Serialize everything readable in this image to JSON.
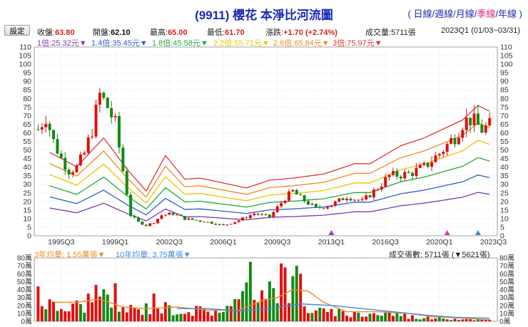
{
  "header": {
    "title": "(9911) 櫻花 本淨比河流圖",
    "periods": [
      {
        "label": "日線",
        "active": false
      },
      {
        "label": "週線",
        "active": false
      },
      {
        "label": "月線",
        "active": false
      },
      {
        "label": "季線",
        "active": true
      },
      {
        "label": "年線",
        "active": false
      }
    ],
    "open_paren": "(",
    "close_paren": ")",
    "sep": "/"
  },
  "toolbar": {
    "settings_label": "設定",
    "close_label": "收盤:",
    "close_value": "63.80",
    "open_label": "開盤:",
    "open_value": "62.10",
    "high_label": "最高:",
    "high_value": "65.00",
    "low_label": "最低:",
    "low_value": "61.70",
    "change_label": "漲跌:",
    "change_value": "+1.70",
    "change_pct": "(+2.74%)",
    "volume_label": "成交量:",
    "volume_value": "5711張",
    "period_text": "2023Q1 (01/03~03/31)"
  },
  "colors": {
    "up": "#e01010",
    "down": "#138a13",
    "b1": "#7a3db0",
    "b2": "#2f5fd0",
    "b3": "#22a83a",
    "b4": "#e9c400",
    "b5": "#ee8a22",
    "b6": "#de3535",
    "ma3": "#ee8a22",
    "ma10": "#3a8ee0"
  },
  "chart_data": {
    "type": "candlestick-river",
    "price_axis": {
      "min": 0,
      "max": 110,
      "step": 5
    },
    "x_ticks": [
      "1995Q3",
      "1999Q1",
      "2002Q3",
      "2006Q1",
      "2009Q3",
      "2013Q1",
      "2016Q3",
      "2020Q1",
      "2023Q3"
    ],
    "bands": [
      {
        "name": "1倍:25.32元",
        "line": "1倍",
        "price": 25.32
      },
      {
        "name": "1.4倍:35.45元",
        "line": "1.4倍",
        "price": 35.45
      },
      {
        "name": "1.8倍:45.58元",
        "line": "1.8倍",
        "price": 45.58
      },
      {
        "name": "2.2倍:55.71元",
        "line": "2.2倍",
        "price": 55.71
      },
      {
        "name": "2.6倍:65.84元",
        "line": "2.6倍",
        "price": 65.84
      },
      {
        "name": "3倍:75.97元",
        "line": "3倍",
        "price": 75.97
      }
    ],
    "bvps_anchors": [
      [
        1994.75,
        16.2
      ],
      [
        1996.5,
        13.4
      ],
      [
        1998.25,
        19.0
      ],
      [
        1999.75,
        13.0
      ],
      [
        2001.0,
        8.7
      ],
      [
        2002.25,
        15.6
      ],
      [
        2003.5,
        11.0
      ],
      [
        2004.5,
        11.2
      ],
      [
        2007.5,
        9.3
      ],
      [
        2009.0,
        10.8
      ],
      [
        2010.5,
        11.2
      ],
      [
        2012.5,
        12.0
      ],
      [
        2014.5,
        14.0
      ],
      [
        2015.5,
        14.0
      ],
      [
        2017.5,
        17.5
      ],
      [
        2019.0,
        19.0
      ],
      [
        2021.5,
        22.5
      ],
      [
        2022.5,
        25.3
      ],
      [
        2023.25,
        24.2
      ]
    ],
    "candle_anchors": [
      [
        1994.0,
        62
      ],
      [
        1994.5,
        70
      ],
      [
        1995.0,
        55
      ],
      [
        1995.5,
        45
      ],
      [
        1996.0,
        38
      ],
      [
        1996.5,
        40
      ],
      [
        1997.0,
        48
      ],
      [
        1997.5,
        62
      ],
      [
        1998.0,
        82
      ],
      [
        1998.5,
        75
      ],
      [
        1999.0,
        65
      ],
      [
        1999.5,
        38
      ],
      [
        2000.0,
        12
      ],
      [
        2000.5,
        8
      ],
      [
        2001.0,
        6
      ],
      [
        2001.5,
        8
      ],
      [
        2002.0,
        12
      ],
      [
        2002.75,
        13
      ],
      [
        2003.5,
        10
      ],
      [
        2005.0,
        8
      ],
      [
        2006.0,
        6
      ],
      [
        2007.0,
        9
      ],
      [
        2008.0,
        13
      ],
      [
        2009.0,
        11
      ],
      [
        2010.0,
        22
      ],
      [
        2010.5,
        26
      ],
      [
        2011.0,
        22
      ],
      [
        2012.0,
        16
      ],
      [
        2013.0,
        18
      ],
      [
        2014.0,
        23
      ],
      [
        2015.0,
        20
      ],
      [
        2016.0,
        28
      ],
      [
        2016.75,
        35
      ],
      [
        2018.0,
        36
      ],
      [
        2019.0,
        40
      ],
      [
        2020.0,
        48
      ],
      [
        2021.0,
        58
      ],
      [
        2021.5,
        66
      ],
      [
        2022.0,
        68
      ],
      [
        2022.75,
        62
      ],
      [
        2023.25,
        64
      ]
    ],
    "volume_axis": {
      "unit": "萬",
      "min": 0,
      "max": 80,
      "step": 10,
      "labels": [
        "0萬",
        "10萬",
        "20萬",
        "30萬",
        "40萬",
        "50萬",
        "60萬",
        "70萬",
        "80萬"
      ]
    },
    "volume_header": {
      "ma3_label": "3年均量: 1.55萬張",
      "ma10_label": "10年均量: 3.75萬張",
      "volume_text": "成交張數: 5711張 (▼5621張)"
    },
    "volume_anchors": [
      [
        1994.0,
        40
      ],
      [
        1995.0,
        22
      ],
      [
        1996.0,
        20
      ],
      [
        1997.0,
        28
      ],
      [
        1997.75,
        43
      ],
      [
        1998.5,
        28
      ],
      [
        1999.5,
        20
      ],
      [
        2000.5,
        18
      ],
      [
        2001.5,
        24
      ],
      [
        2002.5,
        20
      ],
      [
        2003.5,
        18
      ],
      [
        2005.0,
        16
      ],
      [
        2006.5,
        22
      ],
      [
        2008.0,
        50
      ],
      [
        2009.5,
        60
      ],
      [
        2010.5,
        50
      ],
      [
        2011.5,
        22
      ],
      [
        2012.5,
        14
      ],
      [
        2014.0,
        12
      ],
      [
        2015.5,
        12
      ],
      [
        2017.0,
        12
      ],
      [
        2018.5,
        6
      ],
      [
        2020.0,
        5
      ],
      [
        2021.5,
        4
      ],
      [
        2023.25,
        2
      ]
    ],
    "volume_spikes": [
      [
        1994.0,
        44
      ],
      [
        1997.75,
        46
      ],
      [
        1999.0,
        48
      ],
      [
        2001.5,
        35
      ],
      [
        2007.75,
        75
      ],
      [
        2008.5,
        39
      ],
      [
        2009.75,
        73
      ],
      [
        2010.0,
        68
      ],
      [
        2010.5,
        57
      ],
      [
        2010.75,
        70
      ],
      [
        2011.0,
        60
      ]
    ],
    "ma3_anchors": [
      [
        1995.0,
        24
      ],
      [
        1996.5,
        24
      ],
      [
        1998.0,
        28
      ],
      [
        1999.5,
        18
      ],
      [
        2001.0,
        16
      ],
      [
        2003.0,
        18
      ],
      [
        2005.0,
        14
      ],
      [
        2007.0,
        14
      ],
      [
        2008.5,
        26
      ],
      [
        2009.5,
        30
      ],
      [
        2010.5,
        40
      ],
      [
        2011.5,
        38
      ],
      [
        2012.5,
        24
      ],
      [
        2014.0,
        12
      ],
      [
        2016.0,
        12
      ],
      [
        2018.0,
        10
      ],
      [
        2019.5,
        6
      ],
      [
        2021.5,
        4
      ],
      [
        2023.25,
        2
      ]
    ],
    "ma10_anchors": [
      [
        2003.0,
        16
      ],
      [
        2005.0,
        16
      ],
      [
        2007.0,
        13
      ],
      [
        2009.0,
        16
      ],
      [
        2011.0,
        22
      ],
      [
        2013.0,
        20
      ],
      [
        2015.0,
        16
      ],
      [
        2017.0,
        12
      ],
      [
        2019.0,
        8
      ],
      [
        2021.0,
        5
      ],
      [
        2023.25,
        4
      ]
    ],
    "markers": [
      {
        "x": 2013.0,
        "color": "#9b3ad0"
      },
      {
        "x": 2020.5,
        "color": "#e030b0"
      },
      {
        "x": 2022.5,
        "color": "#2f8fd8"
      }
    ]
  }
}
